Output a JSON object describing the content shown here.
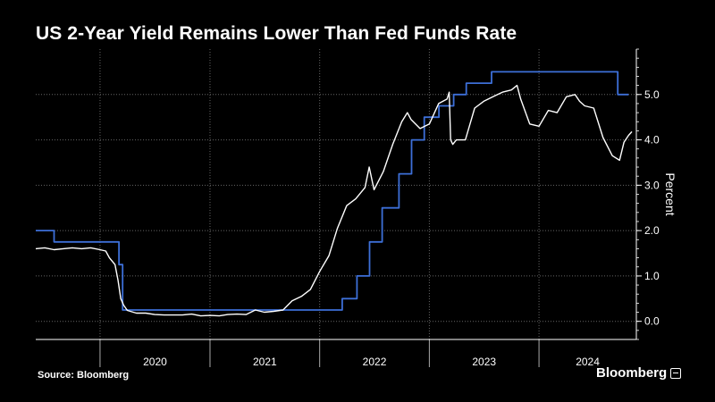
{
  "header": {
    "title": "US 2-Year Yield Remains Lower Than Fed Funds Rate"
  },
  "footer": {
    "source": "Source: Bloomberg",
    "brand": "Bloomberg"
  },
  "colors": {
    "background": "#000000",
    "yield_line": "#ffffff",
    "fed_line": "#3d6fd8",
    "grid": "#666666"
  },
  "chart_data": {
    "type": "line",
    "title": "US 2-Year Yield Remains Lower Than Fed Funds Rate",
    "ylabel": "Percent",
    "y_axis_position": "right",
    "ylim": [
      -0.4,
      6.0
    ],
    "yticks": [
      0.0,
      1.0,
      2.0,
      3.0,
      4.0,
      5.0
    ],
    "ytick_labels": [
      "0.0",
      "1.0",
      "2.0",
      "3.0",
      "4.0",
      "5.0"
    ],
    "xlim": [
      "2019-06-01",
      "2024-11-20"
    ],
    "xticks": [
      "2020",
      "2021",
      "2022",
      "2023",
      "2024"
    ],
    "grid": true,
    "series": [
      {
        "id": "fed",
        "step": true,
        "x": [
          "2019-06-01",
          "2019-06-20",
          "2019-08-01",
          "2019-09-19",
          "2019-10-31",
          "2020-03-04",
          "2020-03-16",
          "2022-03-17",
          "2022-05-05",
          "2022-06-16",
          "2022-07-28",
          "2022-09-22",
          "2022-11-03",
          "2022-12-15",
          "2023-02-02",
          "2023-03-23",
          "2023-05-04",
          "2023-07-27",
          "2024-09-19",
          "2024-10-25"
        ],
        "values": [
          2.0,
          2.0,
          1.75,
          1.75,
          1.75,
          1.25,
          0.25,
          0.5,
          1.0,
          1.75,
          2.5,
          3.25,
          4.0,
          4.5,
          4.75,
          5.0,
          5.25,
          5.5,
          5.0,
          5.0
        ]
      },
      {
        "id": "yield",
        "step": false,
        "x": [
          "2019-06-01",
          "2019-07-01",
          "2019-08-01",
          "2019-09-01",
          "2019-10-01",
          "2019-11-01",
          "2019-12-01",
          "2020-01-01",
          "2020-01-20",
          "2020-02-01",
          "2020-02-20",
          "2020-03-01",
          "2020-03-10",
          "2020-03-20",
          "2020-04-01",
          "2020-05-01",
          "2020-06-01",
          "2020-07-01",
          "2020-08-01",
          "2020-09-01",
          "2020-10-01",
          "2020-11-01",
          "2020-12-01",
          "2021-01-01",
          "2021-02-01",
          "2021-03-01",
          "2021-04-01",
          "2021-05-01",
          "2021-06-01",
          "2021-07-01",
          "2021-08-01",
          "2021-09-01",
          "2021-10-01",
          "2021-11-01",
          "2021-12-01",
          "2022-01-01",
          "2022-02-01",
          "2022-03-01",
          "2022-04-01",
          "2022-05-01",
          "2022-06-01",
          "2022-06-15",
          "2022-07-01",
          "2022-08-01",
          "2022-09-01",
          "2022-10-01",
          "2022-10-20",
          "2022-11-01",
          "2022-12-01",
          "2023-01-01",
          "2023-02-01",
          "2023-03-01",
          "2023-03-08",
          "2023-03-13",
          "2023-03-20",
          "2023-04-01",
          "2023-05-01",
          "2023-06-01",
          "2023-07-01",
          "2023-08-01",
          "2023-09-01",
          "2023-10-01",
          "2023-10-20",
          "2023-11-01",
          "2023-12-01",
          "2024-01-01",
          "2024-02-01",
          "2024-03-01",
          "2024-04-01",
          "2024-04-30",
          "2024-05-15",
          "2024-06-01",
          "2024-07-01",
          "2024-08-01",
          "2024-09-01",
          "2024-09-25",
          "2024-10-10",
          "2024-10-25",
          "2024-11-05"
        ],
        "values": [
          1.6,
          1.62,
          1.58,
          1.6,
          1.62,
          1.6,
          1.62,
          1.58,
          1.55,
          1.4,
          1.25,
          0.9,
          0.5,
          0.35,
          0.24,
          0.18,
          0.18,
          0.15,
          0.14,
          0.14,
          0.14,
          0.16,
          0.12,
          0.13,
          0.12,
          0.15,
          0.16,
          0.15,
          0.25,
          0.2,
          0.22,
          0.25,
          0.45,
          0.55,
          0.7,
          1.1,
          1.45,
          2.05,
          2.55,
          2.7,
          2.95,
          3.4,
          2.9,
          3.3,
          3.9,
          4.4,
          4.6,
          4.45,
          4.25,
          4.35,
          4.8,
          4.9,
          5.05,
          4.0,
          3.9,
          4.0,
          4.0,
          4.7,
          4.85,
          4.95,
          5.05,
          5.1,
          5.2,
          4.9,
          4.35,
          4.3,
          4.65,
          4.6,
          4.95,
          5.0,
          4.85,
          4.75,
          4.7,
          4.05,
          3.65,
          3.55,
          3.95,
          4.1,
          4.18
        ]
      }
    ]
  }
}
